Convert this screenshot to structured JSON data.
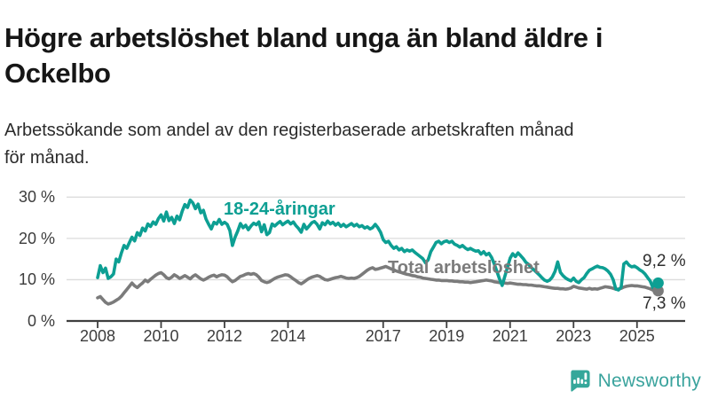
{
  "header": {
    "title_line1": "Högre arbetslöshet bland unga än bland äldre i",
    "title_line2": "Ockelbo",
    "subtitle_line1": "Arbetssökande som andel av den registerbaserade arbetskraften månad",
    "subtitle_line2": "för månad."
  },
  "footer": {
    "brand": "Newsworthy"
  },
  "colors": {
    "youth_line": "#0d9f93",
    "total_line": "#7b7b7b",
    "gridline": "#dcdcdc",
    "axis": "#3f3f3f",
    "logo_teal": "#35a79a"
  },
  "chart_data": {
    "type": "line",
    "title": "Högre arbetslöshet bland unga än bland äldre i Ockelbo",
    "subtitle": "Arbetssökande som andel av den registerbaserade arbetskraften månad för månad.",
    "x_unit": "month",
    "x_start": "2008-01",
    "x_end": "2025-09",
    "x_tick_labels": [
      "2008",
      "2010",
      "2012",
      "2014",
      "2017",
      "2019",
      "2021",
      "2023",
      "2025"
    ],
    "y_tick_labels": [
      "0 %",
      "10 %",
      "20 %",
      "30 %"
    ],
    "y_tick_values": [
      0,
      10,
      20,
      30
    ],
    "ylim": [
      0,
      31
    ],
    "grid": "horizontal",
    "legend_position": "inline-labels",
    "series": [
      {
        "name": "18-24-åringar",
        "color": "#0d9f93",
        "end_label": "9,2 %",
        "end_value": 9.2,
        "values": [
          10.5,
          13.4,
          11.7,
          12.8,
          10.3,
          10.7,
          11.4,
          15.0,
          14.3,
          16.5,
          18.3,
          17.6,
          19.0,
          20.3,
          19.4,
          21.4,
          20.7,
          22.5,
          21.8,
          23.5,
          22.9,
          24.0,
          23.4,
          24.8,
          25.7,
          24.2,
          26.4,
          24.3,
          25.1,
          23.6,
          25.4,
          24.5,
          26.6,
          28.2,
          27.5,
          29.3,
          28.6,
          27.2,
          28.3,
          26.2,
          26.8,
          24.7,
          23.4,
          22.3,
          23.9,
          23.5,
          24.6,
          23.4,
          23.9,
          23.4,
          21.9,
          18.3,
          20.3,
          21.8,
          23.6,
          22.6,
          23.2,
          22.1,
          23.0,
          23.7,
          23.3,
          24.0,
          21.6,
          23.3,
          20.9,
          21.4,
          23.5,
          23.0,
          23.6,
          24.1,
          23.3,
          23.8,
          24.2,
          23.5,
          24.0,
          23.1,
          22.4,
          21.5,
          23.4,
          22.3,
          23.0,
          23.8,
          24.1,
          23.4,
          22.3,
          23.8,
          23.3,
          24.2,
          23.5,
          23.9,
          23.2,
          23.7,
          22.9,
          23.4,
          22.8,
          23.2,
          23.6,
          23.0,
          23.4,
          22.8,
          23.1,
          22.5,
          22.8,
          22.3,
          22.6,
          23.4,
          22.6,
          21.5,
          19.7,
          19.0,
          19.3,
          18.3,
          17.6,
          18.0,
          17.2,
          17.6,
          16.8,
          17.2,
          16.9,
          17.2,
          16.6,
          16.1,
          15.6,
          15.1,
          14.1,
          14.8,
          16.8,
          17.9,
          19.0,
          19.3,
          18.7,
          19.2,
          19.4,
          19.0,
          19.3,
          18.6,
          18.3,
          17.9,
          18.3,
          17.7,
          17.3,
          17.6,
          17.2,
          16.9,
          17.0,
          16.2,
          16.8,
          16.0,
          16.4,
          15.4,
          13.8,
          12.0,
          10.2,
          8.6,
          10.8,
          13.0,
          15.2,
          16.3,
          15.6,
          16.5,
          15.8,
          15.1,
          14.2,
          13.7,
          12.9,
          12.4,
          11.8,
          11.2,
          10.5,
          9.9,
          9.6,
          9.9,
          10.7,
          12.0,
          14.3,
          11.8,
          11.0,
          10.4,
          10.0,
          9.7,
          10.4,
          9.6,
          9.3,
          10.0,
          10.5,
          11.5,
          12.3,
          12.6,
          13.0,
          13.3,
          13.0,
          12.9,
          12.6,
          12.1,
          11.3,
          10.0,
          7.7,
          7.5,
          8.2,
          13.8,
          14.3,
          13.5,
          13.1,
          13.3,
          12.9,
          12.4,
          12.0,
          11.4,
          10.5,
          9.7,
          8.1,
          7.7,
          9.2
        ]
      },
      {
        "name": "Total arbetslöshet",
        "color": "#7b7b7b",
        "end_label": "7,3 %",
        "end_value": 7.3,
        "values": [
          5.6,
          5.9,
          5.2,
          4.5,
          4.1,
          4.3,
          4.6,
          5.0,
          5.4,
          6.0,
          6.8,
          7.6,
          8.4,
          9.2,
          8.5,
          8.1,
          8.7,
          9.2,
          9.9,
          9.5,
          10.1,
          10.6,
          11.1,
          11.5,
          11.7,
          11.2,
          10.5,
          10.2,
          10.6,
          11.2,
          10.8,
          10.3,
          10.6,
          11.0,
          10.6,
          10.2,
          10.8,
          11.2,
          10.7,
          10.2,
          9.9,
          10.2,
          10.6,
          10.9,
          11.1,
          10.7,
          11.0,
          11.2,
          11.1,
          10.7,
          10.0,
          9.5,
          9.8,
          10.3,
          10.8,
          11.0,
          11.3,
          11.5,
          11.3,
          11.5,
          11.2,
          10.6,
          9.8,
          9.5,
          9.3,
          9.5,
          9.9,
          10.3,
          10.6,
          10.8,
          11.0,
          11.2,
          11.1,
          10.7,
          10.2,
          9.8,
          9.3,
          9.0,
          9.4,
          9.9,
          10.3,
          10.6,
          10.8,
          11.0,
          10.8,
          10.4,
          10.0,
          9.9,
          10.1,
          10.3,
          10.5,
          10.6,
          10.8,
          10.6,
          10.4,
          10.3,
          10.4,
          10.3,
          10.5,
          10.8,
          11.3,
          11.8,
          12.3,
          12.7,
          12.9,
          12.5,
          12.6,
          12.8,
          13.0,
          13.2,
          12.9,
          12.6,
          12.4,
          12.1,
          11.9,
          11.7,
          11.5,
          11.3,
          11.2,
          11.0,
          10.9,
          10.7,
          10.6,
          10.4,
          10.3,
          10.2,
          10.1,
          10.0,
          9.9,
          9.9,
          9.8,
          9.8,
          9.8,
          9.7,
          9.7,
          9.6,
          9.6,
          9.5,
          9.5,
          9.4,
          9.4,
          9.3,
          9.4,
          9.5,
          9.6,
          9.7,
          9.8,
          9.9,
          9.8,
          9.7,
          9.5,
          9.4,
          9.3,
          9.3,
          9.2,
          9.1,
          9.2,
          9.1,
          9.0,
          8.9,
          8.9,
          8.8,
          8.8,
          8.7,
          8.7,
          8.6,
          8.5,
          8.5,
          8.4,
          8.3,
          8.2,
          8.1,
          8.0,
          7.9,
          7.9,
          7.8,
          7.8,
          7.7,
          7.8,
          8.0,
          8.4,
          8.2,
          8.0,
          7.9,
          7.8,
          7.7,
          7.9,
          7.7,
          7.8,
          7.7,
          7.9,
          8.1,
          8.3,
          8.2,
          8.1,
          7.9,
          7.7,
          7.7,
          7.9,
          8.2,
          8.4,
          8.5,
          8.6,
          8.5,
          8.5,
          8.4,
          8.3,
          8.2,
          8.0,
          7.8,
          7.5,
          7.3,
          7.3
        ]
      }
    ]
  }
}
